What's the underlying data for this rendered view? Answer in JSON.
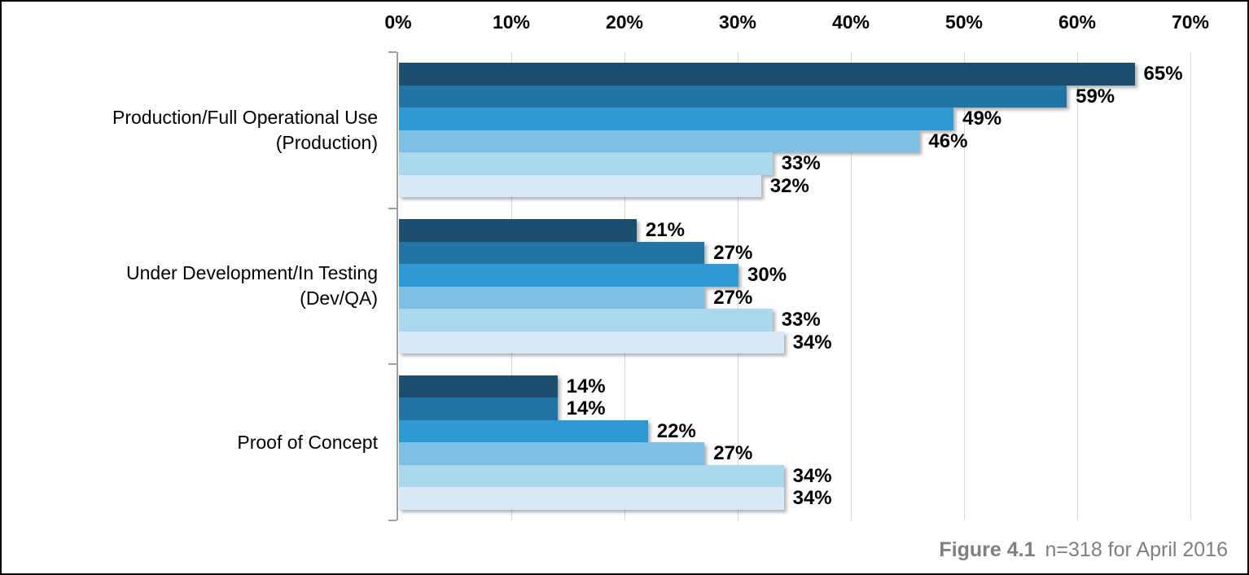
{
  "chart_data": {
    "type": "bar",
    "orientation": "horizontal",
    "title": "",
    "categories": [
      "Production/Full Operational Use (Production)",
      "Under Development/In Testing (Dev/QA)",
      "Proof of Concept"
    ],
    "category_display_lines": [
      "Production/Full Operational Use\n(Production)",
      "Under Development/In Testing\n(Dev/QA)",
      "Proof of Concept"
    ],
    "series": [
      {
        "name": "series-1-darkest-blue",
        "color": "#1C4E70",
        "values": [
          65,
          21,
          14
        ]
      },
      {
        "name": "series-2-dark-blue",
        "color": "#2274A5",
        "values": [
          59,
          27,
          14
        ]
      },
      {
        "name": "series-3-medium-blue",
        "color": "#2E9AD5",
        "values": [
          49,
          30,
          22
        ]
      },
      {
        "name": "series-4-light-blue",
        "color": "#7EC0E3",
        "values": [
          46,
          27,
          27
        ]
      },
      {
        "name": "series-5-lighter-blue",
        "color": "#ABD8EE",
        "values": [
          33,
          33,
          34
        ]
      },
      {
        "name": "series-6-lightest-blue",
        "color": "#D8EAF6",
        "values": [
          32,
          34,
          34
        ]
      }
    ],
    "value_suffix": "%",
    "x_axis": {
      "position": "top",
      "min": 0,
      "max": 70,
      "step": 10,
      "tick_labels": [
        "0%",
        "10%",
        "20%",
        "30%",
        "40%",
        "50%",
        "60%",
        "70%"
      ]
    },
    "grid": true,
    "legend_position": "none"
  },
  "caption": {
    "figure_label": "Figure 4.1",
    "note": "n=318 for April 2016"
  },
  "colors": {
    "gridline": "#D9D9D9",
    "axis": "#A0A0A0",
    "text": "#000000",
    "caption": "#7F7F7F",
    "background": "#FFFFFF",
    "border": "#000000"
  }
}
